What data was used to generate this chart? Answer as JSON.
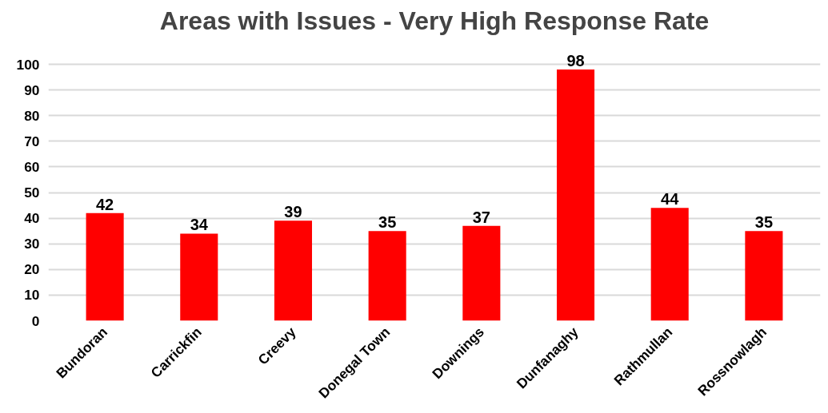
{
  "chart_data": {
    "type": "bar",
    "title": "Areas with Issues - Very High Response Rate",
    "categories": [
      "Bundoran",
      "Carrickfin",
      "Creevy",
      "Donegal Town",
      "Downings",
      "Dunfanaghy",
      "Rathmullan",
      "Rossnowlagh"
    ],
    "values": [
      42,
      34,
      39,
      35,
      37,
      98,
      44,
      35
    ],
    "color": "#ff0000",
    "ylim": [
      0,
      100
    ],
    "yticks": [
      0,
      10,
      20,
      30,
      40,
      50,
      60,
      70,
      80,
      90,
      100
    ],
    "grid": "y",
    "data_labels": true
  }
}
